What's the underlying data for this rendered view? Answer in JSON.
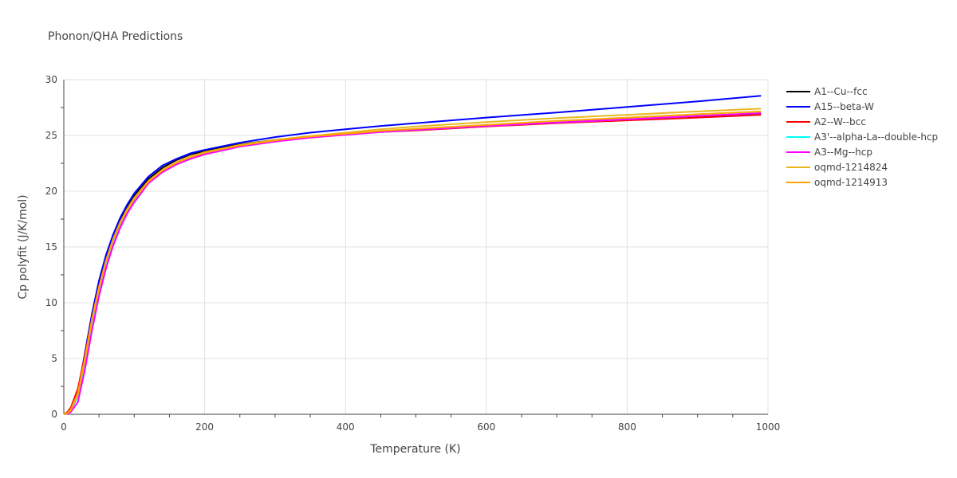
{
  "chart_data": {
    "type": "line",
    "title": "Phonon/QHA Predictions",
    "xlabel": "Temperature (K)",
    "ylabel": "Cp polyfit (J/K/mol)",
    "xlim": [
      0,
      1000
    ],
    "ylim": [
      0,
      30
    ],
    "xticks": [
      0,
      200,
      400,
      600,
      800,
      1000
    ],
    "yticks": [
      0,
      5,
      10,
      15,
      20,
      25,
      30
    ],
    "grid": true,
    "legend_position": "right",
    "series": [
      {
        "name": "A1--Cu--fcc",
        "color": "#000000",
        "x": [
          0,
          5,
          10,
          20,
          30,
          40,
          50,
          60,
          70,
          80,
          90,
          100,
          120,
          140,
          160,
          180,
          200,
          250,
          300,
          350,
          400,
          450,
          500,
          600,
          700,
          800,
          900,
          990
        ],
        "y": [
          0,
          0.1,
          0.4,
          2.0,
          5.2,
          8.7,
          11.7,
          14.0,
          15.9,
          17.4,
          18.6,
          19.6,
          21.1,
          22.1,
          22.8,
          23.3,
          23.6,
          24.2,
          24.6,
          24.9,
          25.15,
          25.35,
          25.5,
          25.85,
          26.15,
          26.45,
          26.7,
          26.95
        ]
      },
      {
        "name": "A15--beta-W",
        "color": "#0000ff",
        "x": [
          0,
          5,
          10,
          20,
          30,
          40,
          50,
          60,
          70,
          80,
          90,
          100,
          120,
          140,
          160,
          180,
          200,
          250,
          300,
          350,
          400,
          450,
          500,
          600,
          700,
          800,
          900,
          990
        ],
        "y": [
          0,
          0.1,
          0.4,
          2.0,
          5.5,
          9.0,
          12.0,
          14.3,
          16.1,
          17.6,
          18.8,
          19.8,
          21.3,
          22.3,
          22.9,
          23.4,
          23.7,
          24.35,
          24.85,
          25.25,
          25.55,
          25.85,
          26.1,
          26.6,
          27.05,
          27.55,
          28.05,
          28.55
        ]
      },
      {
        "name": "A2--W--bcc",
        "color": "#ff0000",
        "x": [
          0,
          5,
          10,
          20,
          30,
          40,
          50,
          60,
          70,
          80,
          90,
          100,
          120,
          140,
          160,
          180,
          200,
          250,
          300,
          350,
          400,
          450,
          500,
          600,
          700,
          800,
          900,
          990
        ],
        "y": [
          0,
          0.2,
          0.6,
          2.3,
          5.3,
          8.6,
          11.5,
          13.8,
          15.7,
          17.2,
          18.4,
          19.4,
          20.9,
          21.9,
          22.6,
          23.1,
          23.5,
          24.1,
          24.55,
          24.85,
          25.1,
          25.3,
          25.45,
          25.8,
          26.1,
          26.35,
          26.6,
          26.85
        ]
      },
      {
        "name": "A3'--alpha-La--double-hcp",
        "color": "#00ffff",
        "x": [
          0,
          5,
          10,
          20,
          30,
          40,
          50,
          60,
          70,
          80,
          90,
          100,
          120,
          140,
          160,
          180,
          200,
          250,
          300,
          350,
          400,
          450,
          500,
          600,
          700,
          800,
          900,
          990
        ],
        "y": [
          0,
          0.1,
          0.3,
          1.6,
          4.6,
          8.0,
          11.0,
          13.4,
          15.4,
          16.9,
          18.2,
          19.2,
          20.8,
          21.8,
          22.5,
          23.0,
          23.4,
          24.05,
          24.5,
          24.85,
          25.1,
          25.3,
          25.5,
          25.85,
          26.15,
          26.45,
          26.75,
          27.0
        ]
      },
      {
        "name": "A3--Mg--hcp",
        "color": "#ff00ff",
        "x": [
          0,
          5,
          10,
          20,
          30,
          40,
          50,
          60,
          70,
          80,
          90,
          100,
          120,
          140,
          160,
          180,
          200,
          250,
          300,
          350,
          400,
          450,
          500,
          600,
          700,
          800,
          900,
          990
        ],
        "y": [
          0,
          0.05,
          0.2,
          1.1,
          4.0,
          7.5,
          10.6,
          13.1,
          15.1,
          16.7,
          18.0,
          19.0,
          20.7,
          21.7,
          22.4,
          22.9,
          23.3,
          24.0,
          24.45,
          24.8,
          25.05,
          25.3,
          25.5,
          25.85,
          26.15,
          26.45,
          26.75,
          27.0
        ]
      },
      {
        "name": "oqmd-1214824",
        "color": "#e6b820",
        "x": [
          0,
          5,
          10,
          20,
          30,
          40,
          50,
          60,
          70,
          80,
          90,
          100,
          120,
          140,
          160,
          180,
          200,
          250,
          300,
          350,
          400,
          450,
          500,
          600,
          700,
          800,
          900,
          990
        ],
        "y": [
          0,
          0.1,
          0.4,
          1.9,
          5.0,
          8.5,
          11.4,
          13.8,
          15.7,
          17.2,
          18.4,
          19.4,
          20.9,
          21.9,
          22.6,
          23.1,
          23.5,
          24.15,
          24.6,
          24.95,
          25.25,
          25.55,
          25.8,
          26.2,
          26.55,
          26.85,
          27.15,
          27.4
        ]
      },
      {
        "name": "oqmd-1214913",
        "color": "#ffa500",
        "x": [
          0,
          5,
          10,
          20,
          30,
          40,
          50,
          60,
          70,
          80,
          90,
          100,
          120,
          140,
          160,
          180,
          200,
          250,
          300,
          350,
          400,
          450,
          500,
          600,
          700,
          800,
          900,
          990
        ],
        "y": [
          0,
          0.1,
          0.35,
          1.8,
          4.9,
          8.4,
          11.3,
          13.7,
          15.6,
          17.1,
          18.3,
          19.3,
          20.85,
          21.85,
          22.55,
          23.05,
          23.45,
          24.1,
          24.55,
          24.9,
          25.15,
          25.4,
          25.6,
          25.95,
          26.3,
          26.6,
          26.9,
          27.15
        ]
      }
    ]
  }
}
